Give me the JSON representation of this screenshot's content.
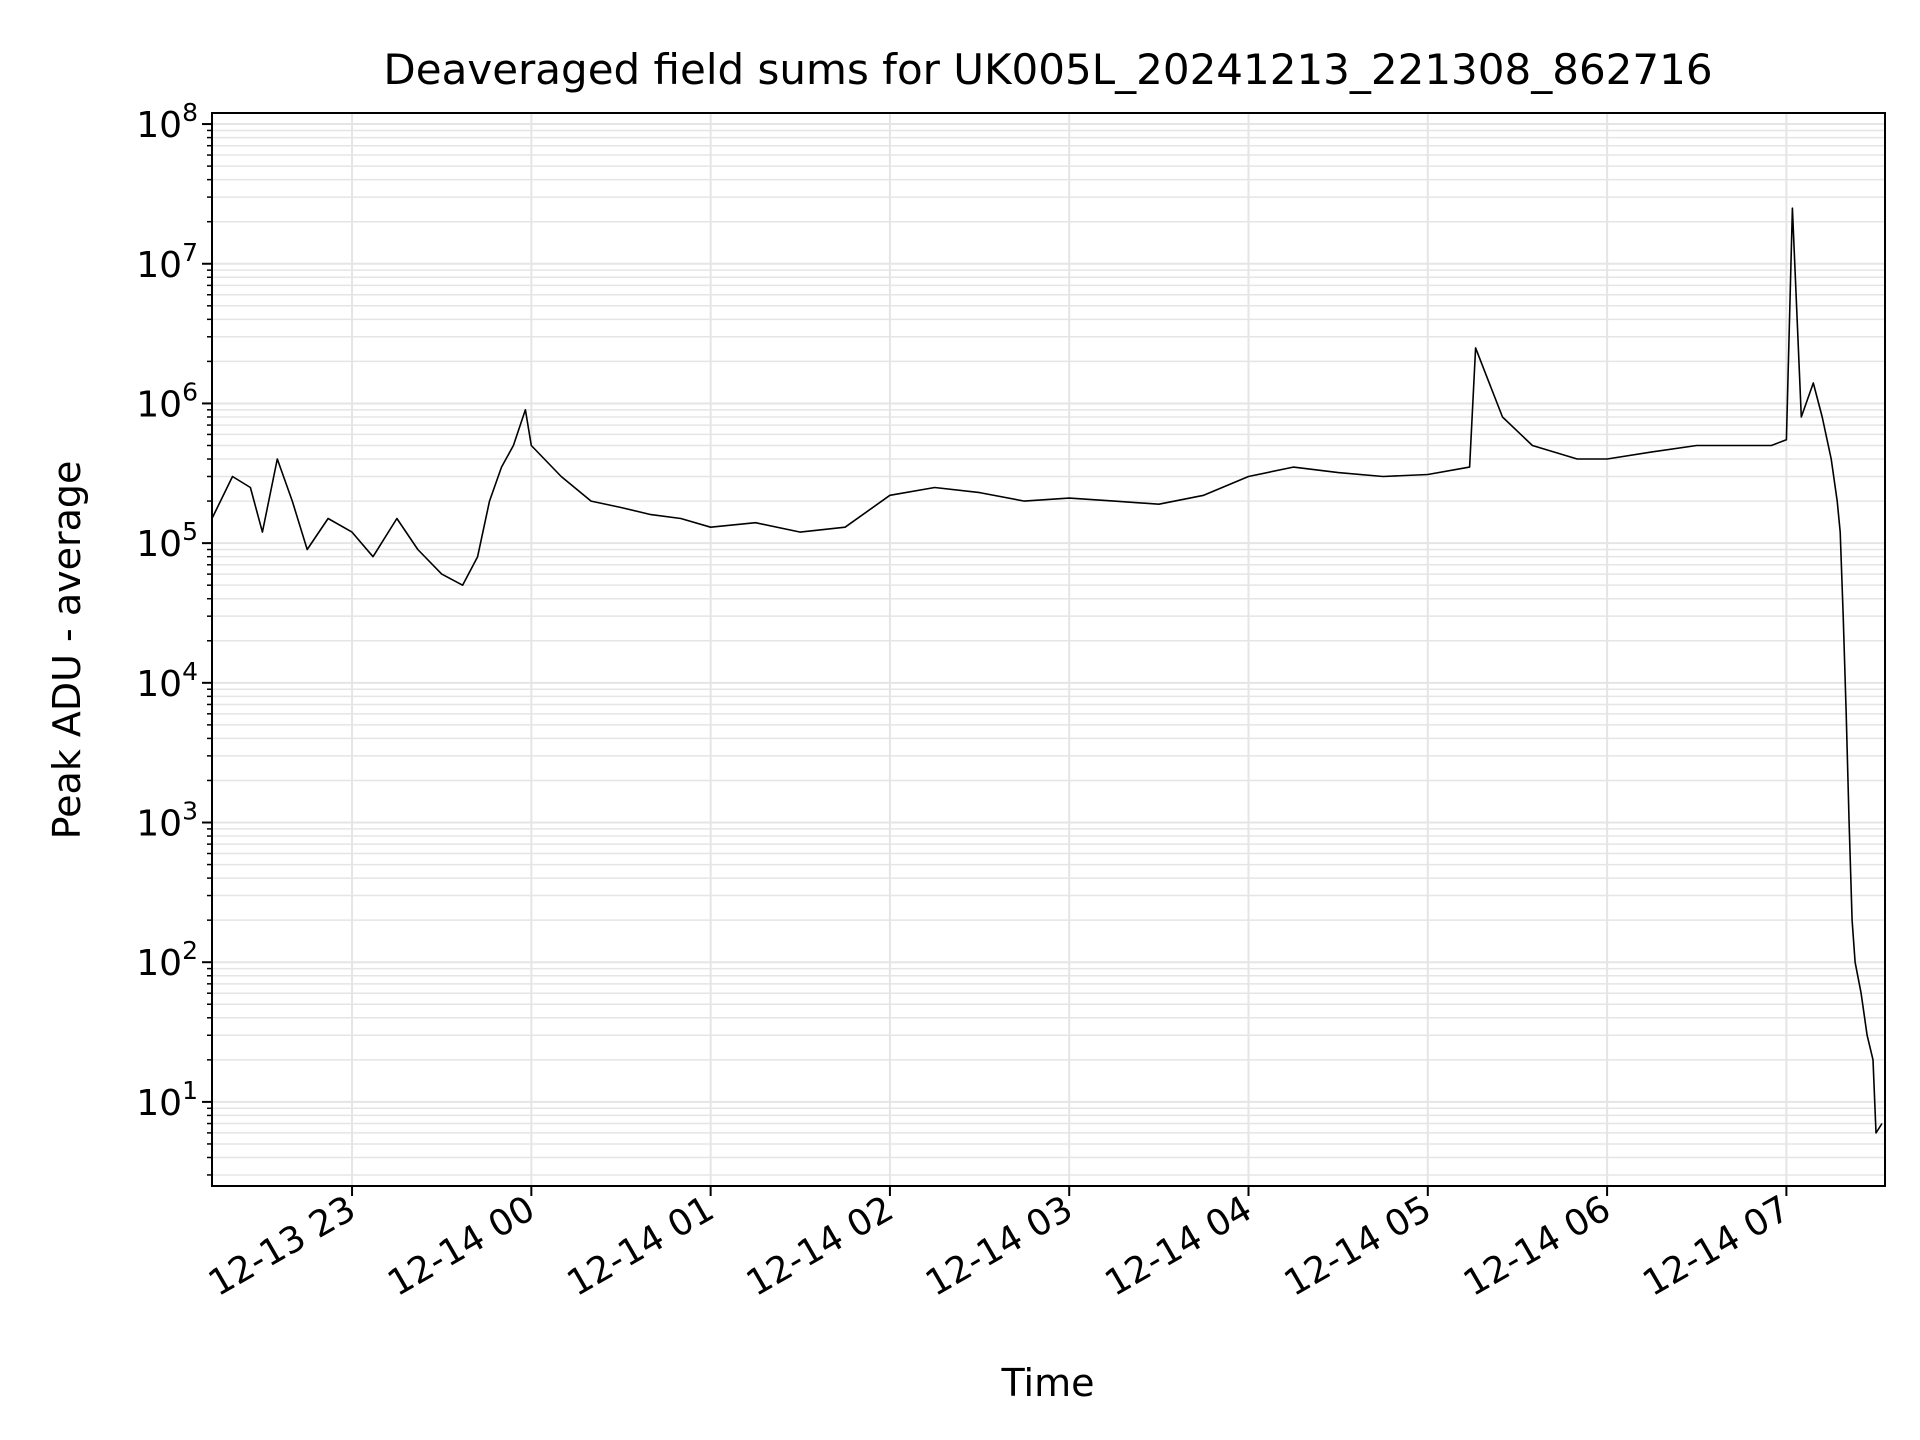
{
  "chart_data": {
    "type": "line",
    "title": "Deaveraged field sums for UK005L_20241213_221308_862716",
    "xlabel": "Time",
    "ylabel": "Peak ADU - average",
    "yscale": "log",
    "ylim": [
      2.5,
      120000000
    ],
    "xlim": [
      "2024-12-13 22:13:08",
      "2024-12-14 07:33:00"
    ],
    "grid": {
      "major": true,
      "minor": true,
      "color": "#e5e5e5"
    },
    "line_color": "#000000",
    "x_ticks": [
      {
        "time": "2024-12-13 23:00",
        "label": "12-13 23"
      },
      {
        "time": "2024-12-14 00:00",
        "label": "12-14 00"
      },
      {
        "time": "2024-12-14 01:00",
        "label": "12-14 01"
      },
      {
        "time": "2024-12-14 02:00",
        "label": "12-14 02"
      },
      {
        "time": "2024-12-14 03:00",
        "label": "12-14 03"
      },
      {
        "time": "2024-12-14 04:00",
        "label": "12-14 04"
      },
      {
        "time": "2024-12-14 05:00",
        "label": "12-14 05"
      },
      {
        "time": "2024-12-14 06:00",
        "label": "12-14 06"
      },
      {
        "time": "2024-12-14 07:00",
        "label": "12-14 07"
      }
    ],
    "y_ticks": [
      {
        "value": 10,
        "base": "10",
        "exp": "1"
      },
      {
        "value": 100,
        "base": "10",
        "exp": "2"
      },
      {
        "value": 1000,
        "base": "10",
        "exp": "3"
      },
      {
        "value": 10000,
        "base": "10",
        "exp": "4"
      },
      {
        "value": 100000,
        "base": "10",
        "exp": "5"
      },
      {
        "value": 1000000,
        "base": "10",
        "exp": "6"
      },
      {
        "value": 10000000,
        "base": "10",
        "exp": "7"
      },
      {
        "value": 100000000,
        "base": "10",
        "exp": "8"
      }
    ],
    "series": [
      {
        "points": [
          [
            "2024-12-13 22:13:08",
            150000
          ],
          [
            "2024-12-13 22:20",
            300000
          ],
          [
            "2024-12-13 22:26",
            250000
          ],
          [
            "2024-12-13 22:30",
            120000
          ],
          [
            "2024-12-13 22:35",
            400000
          ],
          [
            "2024-12-13 22:40",
            200000
          ],
          [
            "2024-12-13 22:45",
            90000
          ],
          [
            "2024-12-13 22:52",
            150000
          ],
          [
            "2024-12-13 23:00",
            120000
          ],
          [
            "2024-12-13 23:07",
            80000
          ],
          [
            "2024-12-13 23:15",
            150000
          ],
          [
            "2024-12-13 23:22",
            90000
          ],
          [
            "2024-12-13 23:30",
            60000
          ],
          [
            "2024-12-13 23:37",
            50000
          ],
          [
            "2024-12-13 23:42",
            80000
          ],
          [
            "2024-12-13 23:46",
            200000
          ],
          [
            "2024-12-13 23:50",
            350000
          ],
          [
            "2024-12-13 23:54",
            500000
          ],
          [
            "2024-12-13 23:58",
            900000
          ],
          [
            "2024-12-14 00:00",
            500000
          ],
          [
            "2024-12-14 00:10",
            300000
          ],
          [
            "2024-12-14 00:20",
            200000
          ],
          [
            "2024-12-14 00:30",
            180000
          ],
          [
            "2024-12-14 00:40",
            160000
          ],
          [
            "2024-12-14 00:50",
            150000
          ],
          [
            "2024-12-14 01:00",
            130000
          ],
          [
            "2024-12-14 01:15",
            140000
          ],
          [
            "2024-12-14 01:30",
            120000
          ],
          [
            "2024-12-14 01:45",
            130000
          ],
          [
            "2024-12-14 02:00",
            220000
          ],
          [
            "2024-12-14 02:15",
            250000
          ],
          [
            "2024-12-14 02:30",
            230000
          ],
          [
            "2024-12-14 02:45",
            200000
          ],
          [
            "2024-12-14 03:00",
            210000
          ],
          [
            "2024-12-14 03:15",
            200000
          ],
          [
            "2024-12-14 03:30",
            190000
          ],
          [
            "2024-12-14 03:45",
            220000
          ],
          [
            "2024-12-14 04:00",
            300000
          ],
          [
            "2024-12-14 04:15",
            350000
          ],
          [
            "2024-12-14 04:30",
            320000
          ],
          [
            "2024-12-14 04:45",
            300000
          ],
          [
            "2024-12-14 05:00",
            310000
          ],
          [
            "2024-12-14 05:14",
            350000
          ],
          [
            "2024-12-14 05:16",
            2500000
          ],
          [
            "2024-12-14 05:20",
            1500000
          ],
          [
            "2024-12-14 05:25",
            800000
          ],
          [
            "2024-12-14 05:35",
            500000
          ],
          [
            "2024-12-14 05:50",
            400000
          ],
          [
            "2024-12-14 06:00",
            400000
          ],
          [
            "2024-12-14 06:15",
            450000
          ],
          [
            "2024-12-14 06:30",
            500000
          ],
          [
            "2024-12-14 06:45",
            500000
          ],
          [
            "2024-12-14 06:55",
            500000
          ],
          [
            "2024-12-14 07:00",
            550000
          ],
          [
            "2024-12-14 07:02",
            25000000
          ],
          [
            "2024-12-14 07:05",
            800000
          ],
          [
            "2024-12-14 07:09",
            1400000
          ],
          [
            "2024-12-14 07:12",
            800000
          ],
          [
            "2024-12-14 07:15",
            400000
          ],
          [
            "2024-12-14 07:17",
            200000
          ],
          [
            "2024-12-14 07:18",
            120000
          ],
          [
            "2024-12-14 07:19",
            30000
          ],
          [
            "2024-12-14 07:20",
            6000
          ],
          [
            "2024-12-14 07:21",
            1000
          ],
          [
            "2024-12-14 07:22",
            200
          ],
          [
            "2024-12-14 07:23",
            100
          ],
          [
            "2024-12-14 07:25",
            60
          ],
          [
            "2024-12-14 07:27",
            30
          ],
          [
            "2024-12-14 07:29",
            20
          ],
          [
            "2024-12-14 07:30",
            6
          ],
          [
            "2024-12-14 07:32",
            7
          ]
        ]
      }
    ]
  }
}
